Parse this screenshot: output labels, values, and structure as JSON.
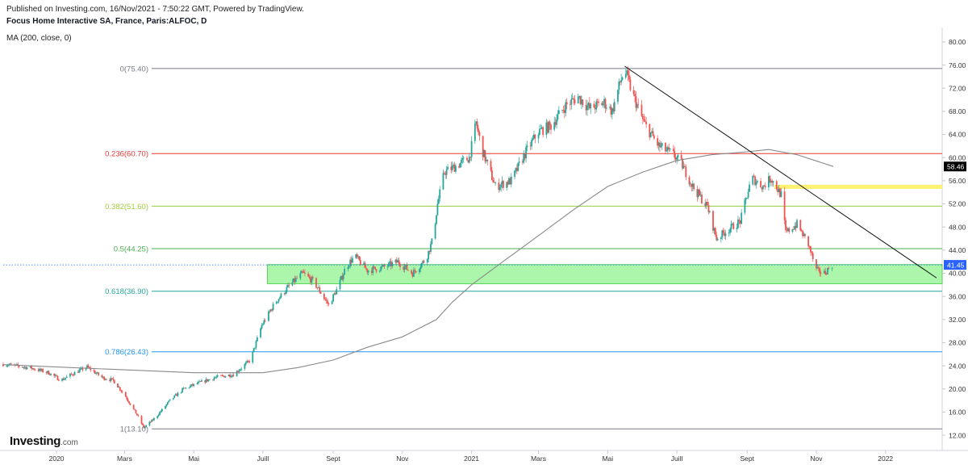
{
  "header": {
    "publish_text": "Published on Investing.com, 16/Nov/2021 - 7:50:22 GMT, Powered by TradingView.",
    "symbol_text": "Focus Home Interactive SA, France, Paris:ALFOC, D",
    "study_text": "MA (200, close, 0)"
  },
  "brand": {
    "name": "Investing",
    "suffix": ".com"
  },
  "colors": {
    "up": "#26a69a",
    "down": "#ef5350",
    "ma": "#8a8a8a",
    "fib_0": "#787b86",
    "fib_236": "#e53935",
    "fib_382": "#9ccc3c",
    "fib_5": "#4caf50",
    "fib_618": "#26a69a",
    "fib_786": "#2196f3",
    "fib_1": "#787b86",
    "zone": "#66ee66",
    "resistance": "#ffee58",
    "trend": "#111111",
    "last_price": "#2962ff",
    "ma_label": "#000000"
  },
  "chart_data": {
    "type": "candlestick",
    "title": "Focus Home Interactive SA, France, Paris:ALFOC, D",
    "x_range": [
      "2019-11-15",
      "2022-02-20"
    ],
    "ylim": [
      10.2,
      82.5
    ],
    "y_ticks": [
      "80.00",
      "76.00",
      "72.00",
      "68.00",
      "64.00",
      "60.00",
      "56.00",
      "52.00",
      "48.00",
      "44.00",
      "40.00",
      "36.00",
      "32.00",
      "28.00",
      "24.00",
      "20.00",
      "16.00",
      "12.00"
    ],
    "x_ticks": [
      {
        "date": "2020-01-01",
        "label": "2020"
      },
      {
        "date": "2020-03-01",
        "label": "Mars"
      },
      {
        "date": "2020-05-01",
        "label": "Mai"
      },
      {
        "date": "2020-07-01",
        "label": "Juill"
      },
      {
        "date": "2020-09-01",
        "label": "Sept"
      },
      {
        "date": "2020-11-01",
        "label": "Nov"
      },
      {
        "date": "2021-01-01",
        "label": "2021"
      },
      {
        "date": "2021-03-01",
        "label": "Mars"
      },
      {
        "date": "2021-05-01",
        "label": "Mai"
      },
      {
        "date": "2021-07-01",
        "label": "Juill"
      },
      {
        "date": "2021-09-01",
        "label": "Sept"
      },
      {
        "date": "2021-11-01",
        "label": "Nov"
      },
      {
        "date": "2022-01-01",
        "label": "2022"
      }
    ],
    "fib_levels": [
      {
        "key": "fib_0",
        "label": "0(75.40)",
        "value": 75.4
      },
      {
        "key": "fib_236",
        "label": "0.236(60.70)",
        "value": 60.7
      },
      {
        "key": "fib_382",
        "label": "0.382(51.60)",
        "value": 51.6
      },
      {
        "key": "fib_5",
        "label": "0.5(44.25)",
        "value": 44.25
      },
      {
        "key": "fib_618",
        "label": "0.618(36.90)",
        "value": 36.9
      },
      {
        "key": "fib_786",
        "label": "0.786(26.43)",
        "value": 26.43
      },
      {
        "key": "fib_1",
        "label": "1(13.10)",
        "value": 13.1
      }
    ],
    "close_anchors": [
      [
        "2019-11-15",
        24.3
      ],
      [
        "2019-12-10",
        23.6
      ],
      [
        "2019-12-25",
        22.8
      ],
      [
        "2020-01-05",
        21.5
      ],
      [
        "2020-01-15",
        22.6
      ],
      [
        "2020-01-28",
        23.8
      ],
      [
        "2020-02-10",
        22.0
      ],
      [
        "2020-02-20",
        21.5
      ],
      [
        "2020-03-01",
        19.0
      ],
      [
        "2020-03-12",
        15.5
      ],
      [
        "2020-03-18",
        13.3
      ],
      [
        "2020-03-28",
        15.0
      ],
      [
        "2020-04-10",
        18.0
      ],
      [
        "2020-04-22",
        20.0
      ],
      [
        "2020-05-05",
        21.0
      ],
      [
        "2020-05-20",
        22.0
      ],
      [
        "2020-06-05",
        22.5
      ],
      [
        "2020-06-20",
        25.0
      ],
      [
        "2020-06-30",
        31.0
      ],
      [
        "2020-07-12",
        35.0
      ],
      [
        "2020-07-25",
        38.0
      ],
      [
        "2020-08-05",
        40.0
      ],
      [
        "2020-08-15",
        38.5
      ],
      [
        "2020-08-28",
        34.5
      ],
      [
        "2020-09-05",
        37.5
      ],
      [
        "2020-09-12",
        41.0
      ],
      [
        "2020-09-20",
        43.0
      ],
      [
        "2020-10-01",
        40.5
      ],
      [
        "2020-10-15",
        41.0
      ],
      [
        "2020-10-28",
        42.0
      ],
      [
        "2020-11-10",
        40.0
      ],
      [
        "2020-11-22",
        42.5
      ],
      [
        "2020-11-28",
        46.0
      ],
      [
        "2020-12-02",
        52.0
      ],
      [
        "2020-12-08",
        57.5
      ],
      [
        "2020-12-18",
        58.5
      ],
      [
        "2020-12-30",
        60.0
      ],
      [
        "2021-01-05",
        66.0
      ],
      [
        "2021-01-10",
        61.5
      ],
      [
        "2021-01-22",
        55.0
      ],
      [
        "2021-02-05",
        56.0
      ],
      [
        "2021-02-18",
        61.0
      ],
      [
        "2021-03-01",
        64.5
      ],
      [
        "2021-03-12",
        65.5
      ],
      [
        "2021-03-25",
        69.0
      ],
      [
        "2021-04-05",
        70.5
      ],
      [
        "2021-04-15",
        68.5
      ],
      [
        "2021-04-28",
        69.5
      ],
      [
        "2021-05-05",
        68.0
      ],
      [
        "2021-05-12",
        73.0
      ],
      [
        "2021-05-16",
        75.2
      ],
      [
        "2021-05-23",
        71.0
      ],
      [
        "2021-06-02",
        66.0
      ],
      [
        "2021-06-15",
        62.0
      ],
      [
        "2021-06-28",
        60.5
      ],
      [
        "2021-07-05",
        59.0
      ],
      [
        "2021-07-15",
        55.0
      ],
      [
        "2021-07-28",
        51.5
      ],
      [
        "2021-08-05",
        46.0
      ],
      [
        "2021-08-15",
        47.5
      ],
      [
        "2021-08-26",
        49.0
      ],
      [
        "2021-09-05",
        56.5
      ],
      [
        "2021-09-15",
        55.0
      ],
      [
        "2021-09-22",
        56.5
      ],
      [
        "2021-10-01",
        53.5
      ],
      [
        "2021-10-05",
        47.0
      ],
      [
        "2021-10-15",
        48.5
      ],
      [
        "2021-10-25",
        45.0
      ],
      [
        "2021-11-01",
        40.5
      ],
      [
        "2021-11-08",
        40.0
      ],
      [
        "2021-11-15",
        41.45
      ]
    ],
    "moving_average_anchors": [
      [
        "2019-11-15",
        24.2
      ],
      [
        "2020-01-01",
        23.8
      ],
      [
        "2020-03-01",
        23.3
      ],
      [
        "2020-05-01",
        22.8
      ],
      [
        "2020-07-01",
        22.8
      ],
      [
        "2020-08-01",
        23.7
      ],
      [
        "2020-09-01",
        25.0
      ],
      [
        "2020-10-01",
        27.2
      ],
      [
        "2020-11-01",
        29.0
      ],
      [
        "2020-12-01",
        32.0
      ],
      [
        "2020-12-15",
        35.0
      ],
      [
        "2021-01-01",
        38.0
      ],
      [
        "2021-02-01",
        42.5
      ],
      [
        "2021-03-01",
        46.5
      ],
      [
        "2021-04-01",
        51.0
      ],
      [
        "2021-05-01",
        55.0
      ],
      [
        "2021-06-01",
        57.5
      ],
      [
        "2021-07-01",
        59.5
      ],
      [
        "2021-08-01",
        60.5
      ],
      [
        "2021-09-01",
        61.0
      ],
      [
        "2021-09-20",
        61.4
      ],
      [
        "2021-10-15",
        60.5
      ],
      [
        "2021-11-16",
        58.46
      ]
    ],
    "zone": {
      "from": "2020-07-05",
      "to": "2022-02-20",
      "low": 38.2,
      "high": 41.5
    },
    "resistance_band": {
      "from": "2021-09-25",
      "to": "2022-02-20",
      "low": 54.6,
      "high": 55.3
    },
    "trendline": {
      "from": [
        "2021-05-16",
        75.8
      ],
      "to": [
        "2022-02-15",
        39.2
      ]
    },
    "last_price": {
      "value": 41.45,
      "label": "41.45"
    },
    "ma_last": {
      "value": 58.46,
      "label": "58.46"
    }
  }
}
